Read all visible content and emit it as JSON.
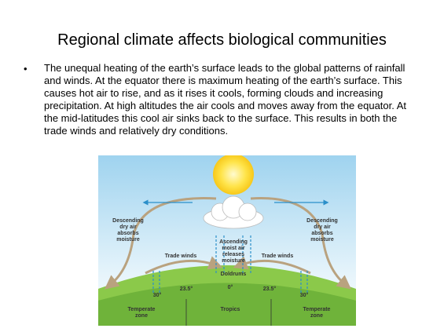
{
  "slide": {
    "title": "Regional climate affects biological communities",
    "bullet": "The unequal heating of the earth’s surface leads to the global patterns of rainfall and winds.  At the equator there is maximum heating of the earth’s surface.  This causes hot air to rise, and as it rises it cools, forming clouds and increasing precipitation.  At high altitudes the air cools and moves away from the equator.  At the mid-latitudes this cool air sinks back to the surface.  This results in both the trade winds and relatively dry conditions.",
    "diagram": {
      "descending_left": [
        "Descending",
        "dry air",
        "absorbs",
        "moisture"
      ],
      "descending_right": [
        "Descending",
        "dry air",
        "absorbs",
        "moisture"
      ],
      "ascending": [
        "Ascending",
        "moist air",
        "releases",
        "moisture"
      ],
      "trade_winds_left": "Trade winds",
      "trade_winds_right": "Trade winds",
      "doldrums": "Doldrums",
      "lat_left_23": "23.5°",
      "lat_equator": "0°",
      "lat_right_23": "23.5°",
      "lat_left_30": "30°",
      "lat_right_30": "30°",
      "zone_left": [
        "Temperate",
        "zone"
      ],
      "zone_center": "Tropics",
      "zone_right": [
        "Temperate",
        "zone"
      ]
    }
  }
}
